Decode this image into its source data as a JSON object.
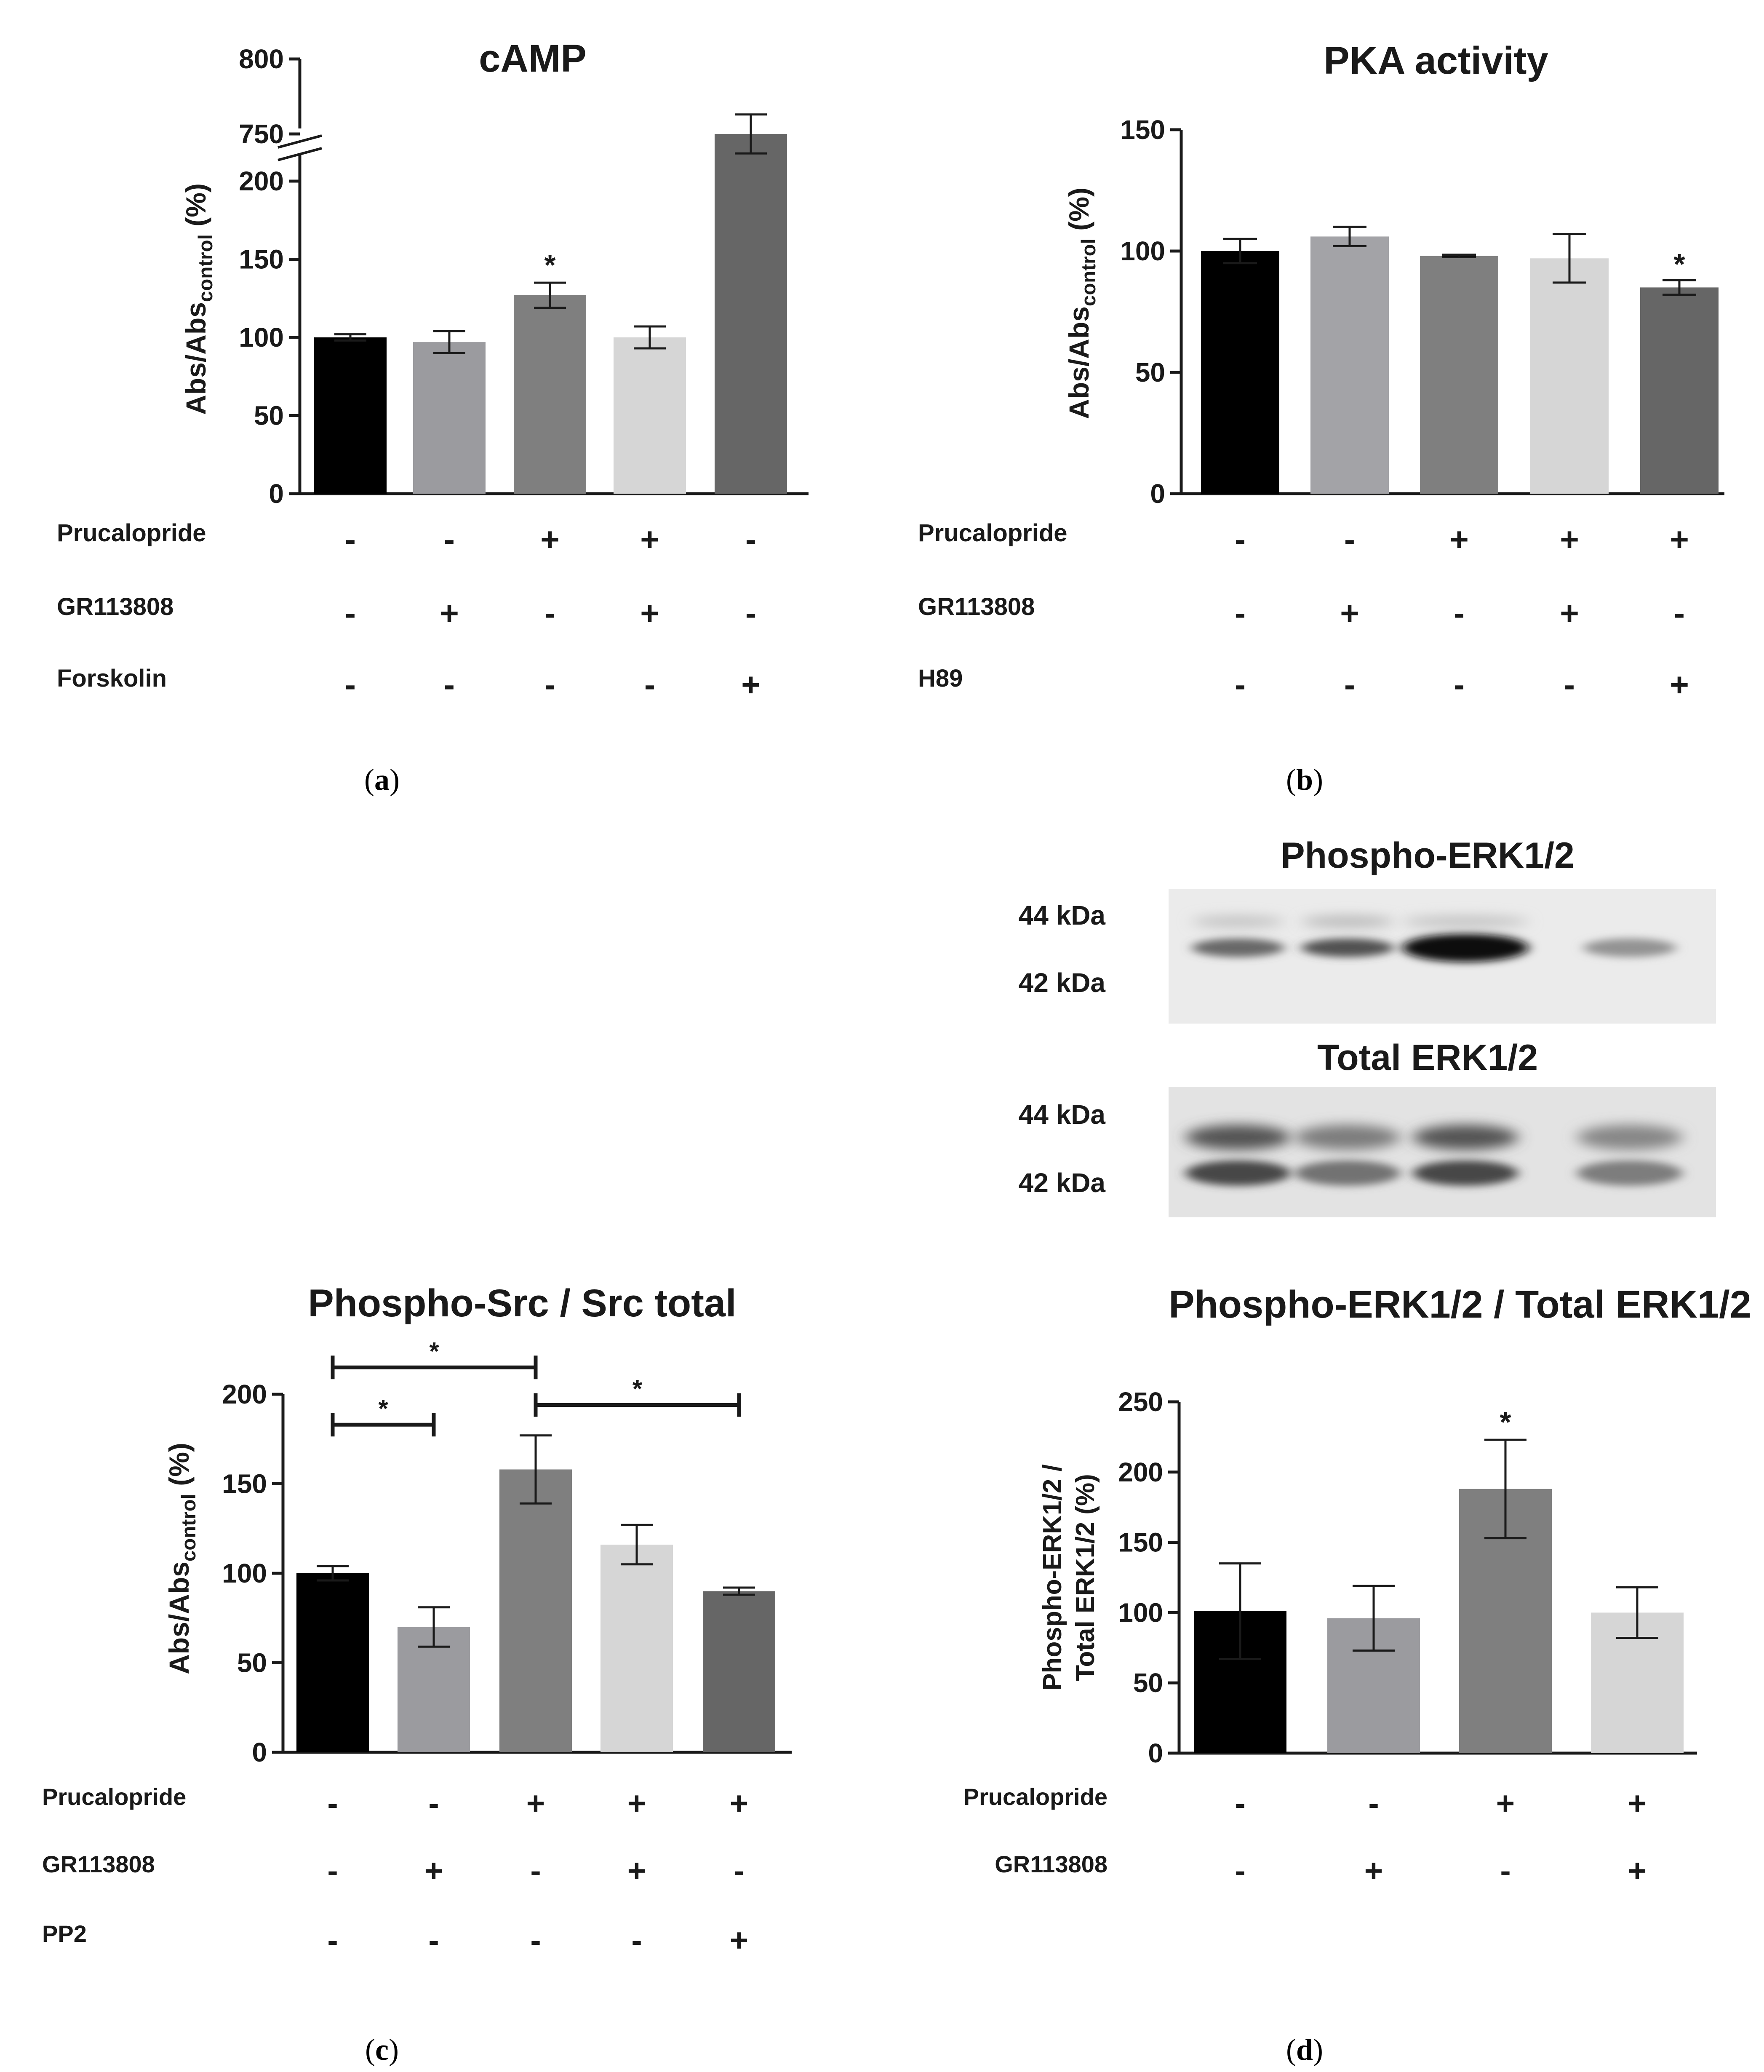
{
  "panels": [
    {
      "label": "a"
    },
    {
      "label": "b"
    },
    {
      "label": "c"
    },
    {
      "label": "d"
    }
  ],
  "chart_data": [
    {
      "id": "a",
      "type": "bar",
      "title": "cAMP",
      "ylabel_main": "Abs/Abs",
      "ylabel_sub": "control",
      "ylabel_suffix": " (%)",
      "axis_break": true,
      "lower_range": [
        0,
        200
      ],
      "upper_range": [
        750,
        800
      ],
      "yticks_lower": [
        "0",
        "50",
        "100",
        "150",
        "200"
      ],
      "yticks_upper": [
        "750",
        "800"
      ],
      "values": [
        100,
        97,
        127,
        100,
        750
      ],
      "errors": [
        2,
        7,
        8,
        7,
        13
      ],
      "significance": [
        "",
        "",
        "*",
        "",
        ""
      ],
      "colors": [
        "#000000",
        "#9b9b9f",
        "#7f7f7f",
        "#d6d6d6",
        "#666666"
      ],
      "treatments": [
        {
          "name": "Prucalopride",
          "signs": [
            "-",
            "-",
            "+",
            "+",
            "-"
          ]
        },
        {
          "name": "GR113808",
          "signs": [
            "-",
            "+",
            "-",
            "+",
            "-"
          ]
        },
        {
          "name": "Forskolin",
          "signs": [
            "-",
            "-",
            "-",
            "-",
            "+"
          ]
        }
      ]
    },
    {
      "id": "b",
      "type": "bar",
      "title": "PKA activity",
      "ylabel_main": "Abs/Abs",
      "ylabel_sub": "control",
      "ylabel_suffix": " (%)",
      "ylim": [
        0,
        150
      ],
      "yticks": [
        "0",
        "50",
        "100",
        "150"
      ],
      "values": [
        100,
        106,
        98,
        97,
        85
      ],
      "errors": [
        5,
        4,
        0.5,
        10,
        3
      ],
      "significance": [
        "",
        "",
        "",
        "",
        "*"
      ],
      "colors": [
        "#000000",
        "#a3a3a7",
        "#7f7f7f",
        "#d6d6d6",
        "#666666"
      ],
      "treatments": [
        {
          "name": "Prucalopride",
          "signs": [
            "-",
            "-",
            "+",
            "+",
            "+"
          ]
        },
        {
          "name": "GR113808",
          "signs": [
            "-",
            "+",
            "-",
            "+",
            "-"
          ]
        },
        {
          "name": "H89",
          "signs": [
            "-",
            "-",
            "-",
            "-",
            "+"
          ]
        }
      ]
    },
    {
      "id": "c",
      "type": "bar",
      "title": "Phospho-Src / Src total",
      "ylabel_main": "Abs/Abs",
      "ylabel_sub": "control",
      "ylabel_suffix": " (%)",
      "ylim": [
        0,
        200
      ],
      "yticks": [
        "0",
        "50",
        "100",
        "150",
        "200"
      ],
      "values": [
        100,
        70,
        158,
        116,
        90
      ],
      "errors": [
        4,
        11,
        19,
        11,
        2
      ],
      "significance": [
        "",
        "",
        "",
        "",
        ""
      ],
      "colors": [
        "#000000",
        "#9b9b9f",
        "#7f7f7f",
        "#d6d6d6",
        "#666666"
      ],
      "brackets": [
        {
          "from": 0,
          "to": 2,
          "y": 215,
          "label": "*"
        },
        {
          "from": 0,
          "to": 1,
          "y": 183,
          "label": "*"
        },
        {
          "from": 2,
          "to": 4,
          "y": 194,
          "label": "*"
        }
      ],
      "treatments": [
        {
          "name": "Prucalopride",
          "signs": [
            "-",
            "-",
            "+",
            "+",
            "+"
          ]
        },
        {
          "name": "GR113808",
          "signs": [
            "-",
            "+",
            "-",
            "+",
            "-"
          ]
        },
        {
          "name": "PP2",
          "signs": [
            "-",
            "-",
            "-",
            "-",
            "+"
          ]
        }
      ]
    },
    {
      "id": "d",
      "type": "bar",
      "title": "Phospho-ERK1/2 / Total ERK1/2",
      "ylabel_line1": "Phospho-ERK1/2 /",
      "ylabel_line2": "Total ERK1/2 (%)",
      "ylim": [
        0,
        250
      ],
      "yticks": [
        "0",
        "50",
        "100",
        "150",
        "200",
        "250"
      ],
      "values": [
        101,
        96,
        188,
        100
      ],
      "errors": [
        34,
        23,
        35,
        18
      ],
      "significance": [
        "",
        "",
        "*",
        ""
      ],
      "colors": [
        "#000000",
        "#9b9b9f",
        "#7f7f7f",
        "#d6d6d6"
      ],
      "treatments": [
        {
          "name": "Prucalopride",
          "signs": [
            "-",
            "-",
            "+",
            "+"
          ]
        },
        {
          "name": "GR113808",
          "signs": [
            "-",
            "+",
            "-",
            "+"
          ]
        }
      ]
    }
  ],
  "blots": [
    {
      "title": "Phospho-ERK1/2",
      "markers": [
        "44 kDa",
        "42 kDa"
      ],
      "band_intensity": [
        0.6,
        0.7,
        1.0,
        0.4
      ],
      "upper_band_intensity": [
        0.2,
        0.25,
        0.2,
        0.0
      ]
    },
    {
      "title": "Total ERK1/2",
      "markers": [
        "44 kDa",
        "42 kDa"
      ],
      "band_intensity": [
        0.75,
        0.55,
        0.75,
        0.5
      ],
      "upper_band_intensity": [
        0.75,
        0.55,
        0.75,
        0.5
      ]
    }
  ]
}
